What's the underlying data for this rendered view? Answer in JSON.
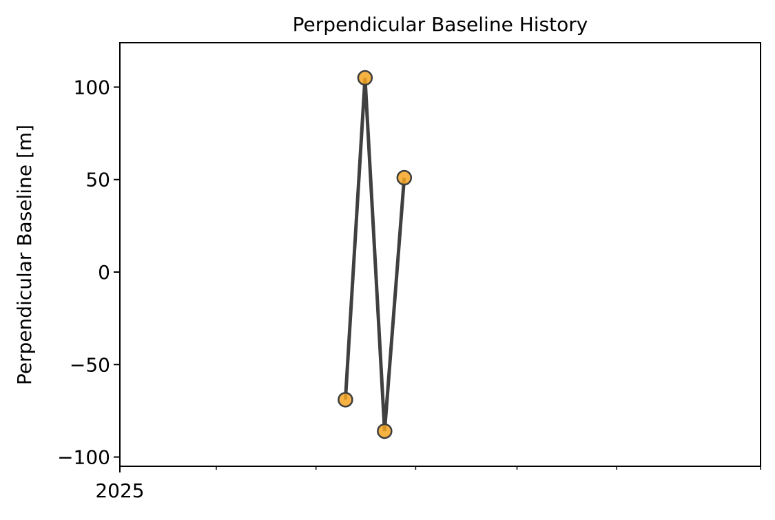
{
  "chart_data": {
    "type": "line",
    "title": "Perpendicular Baseline History",
    "xlabel": "",
    "ylabel": "Perpendicular Baseline [m]",
    "x_tick_labels": [
      "2025"
    ],
    "y_ticks": [
      100,
      50,
      0,
      -50,
      -100
    ],
    "y_tick_labels": [
      "100",
      "50",
      "0",
      "−50",
      "−100"
    ],
    "ylim": [
      -105,
      124
    ],
    "grid": false,
    "legend": "none",
    "series": [
      {
        "x": [
          "2025-05-19",
          "2025-05-31",
          "2025-06-12",
          "2025-06-24"
        ],
        "y": [
          -69,
          105,
          -86,
          51
        ]
      }
    ],
    "colors": {
      "line": "#404040",
      "marker_fill": "#f5a623",
      "marker_edge": "#3d3d3d",
      "axes": "#000000"
    }
  }
}
